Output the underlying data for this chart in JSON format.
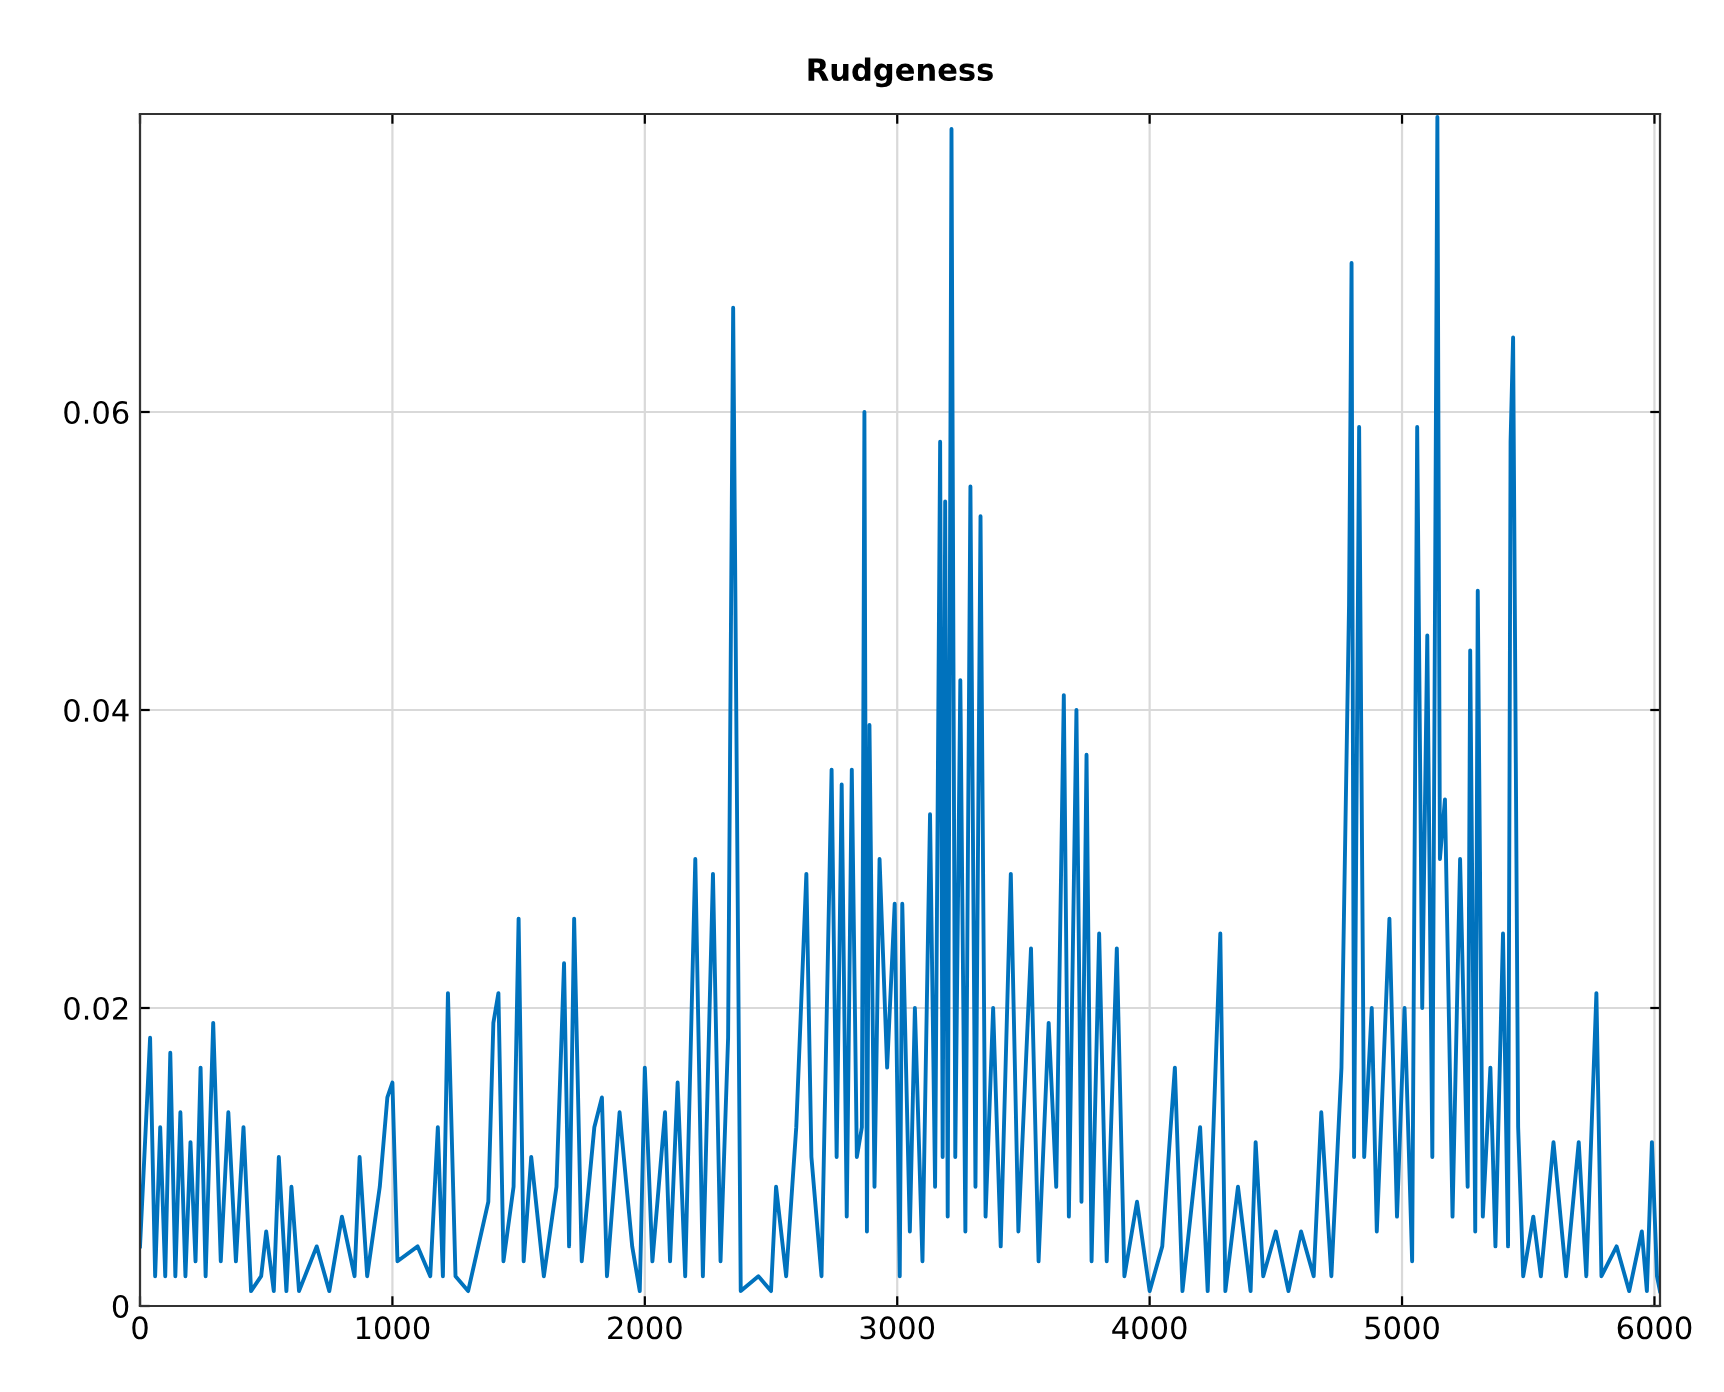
{
  "chart_data": {
    "type": "line",
    "title": "Rudgeness",
    "xlim": [
      0,
      6022
    ],
    "ylim": [
      0,
      0.08
    ],
    "xticks": [
      0,
      1000,
      2000,
      3000,
      4000,
      5000,
      6000
    ],
    "yticks": [
      0,
      0.02,
      0.04,
      0.06
    ],
    "grid": true,
    "series": [
      {
        "color": "#0072bd",
        "x": [
          0,
          40,
          60,
          80,
          100,
          120,
          140,
          160,
          180,
          200,
          220,
          240,
          260,
          290,
          320,
          350,
          380,
          410,
          440,
          480,
          500,
          530,
          550,
          580,
          600,
          630,
          700,
          750,
          800,
          850,
          870,
          900,
          950,
          980,
          1000,
          1020,
          1100,
          1150,
          1180,
          1200,
          1220,
          1250,
          1300,
          1380,
          1400,
          1420,
          1440,
          1480,
          1500,
          1520,
          1550,
          1600,
          1650,
          1680,
          1700,
          1720,
          1750,
          1800,
          1830,
          1850,
          1900,
          1950,
          1980,
          2000,
          2030,
          2080,
          2100,
          2130,
          2160,
          2200,
          2230,
          2270,
          2300,
          2330,
          2350,
          2380,
          2450,
          2500,
          2520,
          2560,
          2600,
          2640,
          2660,
          2700,
          2740,
          2760,
          2780,
          2800,
          2820,
          2840,
          2860,
          2870,
          2880,
          2890,
          2910,
          2930,
          2960,
          2990,
          3010,
          3020,
          3050,
          3070,
          3100,
          3130,
          3150,
          3170,
          3180,
          3190,
          3200,
          3215,
          3230,
          3250,
          3270,
          3290,
          3310,
          3330,
          3350,
          3380,
          3410,
          3450,
          3480,
          3530,
          3560,
          3600,
          3630,
          3660,
          3680,
          3710,
          3730,
          3750,
          3770,
          3800,
          3830,
          3870,
          3900,
          3950,
          4000,
          4050,
          4100,
          4130,
          4200,
          4230,
          4280,
          4300,
          4350,
          4400,
          4420,
          4450,
          4500,
          4550,
          4600,
          4650,
          4680,
          4720,
          4760,
          4790,
          4800,
          4810,
          4830,
          4850,
          4880,
          4900,
          4950,
          4980,
          5010,
          5040,
          5060,
          5080,
          5100,
          5120,
          5140,
          5150,
          5170,
          5200,
          5230,
          5260,
          5270,
          5290,
          5300,
          5320,
          5350,
          5370,
          5400,
          5420,
          5430,
          5440,
          5460,
          5480,
          5520,
          5550,
          5600,
          5650,
          5700,
          5730,
          5770,
          5790,
          5850,
          5900,
          5950,
          5970,
          5990,
          6010,
          6022
        ],
        "values": [
          0.004,
          0.018,
          0.002,
          0.012,
          0.002,
          0.017,
          0.002,
          0.013,
          0.002,
          0.011,
          0.003,
          0.016,
          0.002,
          0.019,
          0.003,
          0.013,
          0.003,
          0.012,
          0.001,
          0.002,
          0.005,
          0.001,
          0.01,
          0.001,
          0.008,
          0.001,
          0.004,
          0.001,
          0.006,
          0.002,
          0.01,
          0.002,
          0.008,
          0.014,
          0.015,
          0.003,
          0.004,
          0.002,
          0.012,
          0.002,
          0.021,
          0.002,
          0.001,
          0.007,
          0.019,
          0.021,
          0.003,
          0.008,
          0.026,
          0.003,
          0.01,
          0.002,
          0.008,
          0.023,
          0.004,
          0.026,
          0.003,
          0.012,
          0.014,
          0.002,
          0.013,
          0.004,
          0.001,
          0.016,
          0.003,
          0.013,
          0.003,
          0.015,
          0.002,
          0.03,
          0.002,
          0.029,
          0.003,
          0.018,
          0.067,
          0.001,
          0.002,
          0.001,
          0.008,
          0.002,
          0.012,
          0.029,
          0.01,
          0.002,
          0.036,
          0.01,
          0.035,
          0.006,
          0.036,
          0.01,
          0.012,
          0.06,
          0.005,
          0.039,
          0.008,
          0.03,
          0.016,
          0.027,
          0.002,
          0.027,
          0.005,
          0.02,
          0.003,
          0.033,
          0.008,
          0.058,
          0.01,
          0.054,
          0.006,
          0.079,
          0.01,
          0.042,
          0.005,
          0.055,
          0.008,
          0.053,
          0.006,
          0.02,
          0.004,
          0.029,
          0.005,
          0.024,
          0.003,
          0.019,
          0.008,
          0.041,
          0.006,
          0.04,
          0.007,
          0.037,
          0.003,
          0.025,
          0.003,
          0.024,
          0.002,
          0.007,
          0.001,
          0.004,
          0.016,
          0.001,
          0.012,
          0.001,
          0.025,
          0.001,
          0.008,
          0.001,
          0.011,
          0.002,
          0.005,
          0.001,
          0.005,
          0.002,
          0.013,
          0.002,
          0.016,
          0.047,
          0.07,
          0.01,
          0.059,
          0.01,
          0.02,
          0.005,
          0.026,
          0.006,
          0.02,
          0.003,
          0.059,
          0.02,
          0.045,
          0.01,
          0.0798,
          0.03,
          0.034,
          0.006,
          0.03,
          0.008,
          0.044,
          0.005,
          0.048,
          0.006,
          0.016,
          0.004,
          0.025,
          0.004,
          0.058,
          0.065,
          0.012,
          0.002,
          0.006,
          0.002,
          0.011,
          0.002,
          0.011,
          0.002,
          0.021,
          0.002,
          0.004,
          0.001,
          0.005,
          0.001,
          0.011,
          0.002,
          0.001
        ]
      }
    ]
  }
}
